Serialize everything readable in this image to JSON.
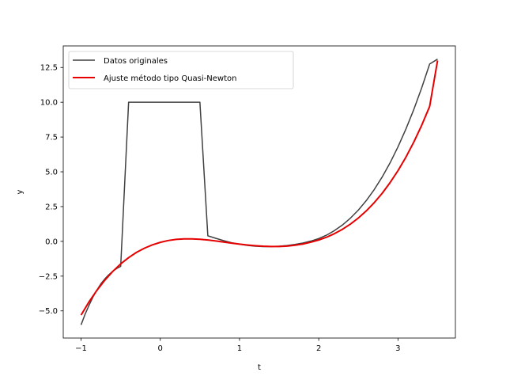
{
  "chart_data": {
    "type": "line",
    "xlabel": "t",
    "ylabel": "y",
    "xlim": [
      -1.225,
      3.725
    ],
    "ylim": [
      -6.95,
      14.05
    ],
    "xticks": [
      -1,
      0,
      1,
      2,
      3
    ],
    "yticks": [
      -5.0,
      -2.5,
      0.0,
      2.5,
      5.0,
      7.5,
      10.0,
      12.5
    ],
    "xtick_labels": [
      "−1",
      "0",
      "1",
      "2",
      "3"
    ],
    "ytick_labels": [
      "−5.0",
      "−2.5",
      "0.0",
      "2.5",
      "5.0",
      "7.5",
      "10.0",
      "12.5"
    ],
    "legend_position": "upper-left",
    "grid": false,
    "series": [
      {
        "name": "Datos originales",
        "color": "#404040",
        "x": [
          -1.0,
          -0.95,
          -0.9,
          -0.85,
          -0.8,
          -0.75,
          -0.7,
          -0.65,
          -0.6,
          -0.55,
          -0.5,
          -0.4,
          -0.3,
          -0.2,
          -0.1,
          0.0,
          0.1,
          0.2,
          0.3,
          0.4,
          0.5,
          0.6,
          0.7,
          0.8,
          0.9,
          1.0,
          1.1,
          1.2,
          1.3,
          1.4,
          1.5,
          1.6,
          1.7,
          1.8,
          1.9,
          2.0,
          2.1,
          2.2,
          2.3,
          2.4,
          2.5,
          2.6,
          2.7,
          2.8,
          2.9,
          3.0,
          3.1,
          3.2,
          3.3,
          3.4,
          3.5
        ],
        "y": [
          -6.0,
          -5.25,
          -4.6,
          -4.0,
          -3.5,
          -3.05,
          -2.7,
          -2.4,
          -2.15,
          -1.95,
          -1.8,
          10.0,
          10.0,
          10.0,
          10.0,
          10.0,
          10.0,
          10.0,
          10.0,
          10.0,
          10.0,
          0.4,
          0.22,
          0.05,
          -0.1,
          -0.2,
          -0.29,
          -0.35,
          -0.38,
          -0.38,
          -0.35,
          -0.3,
          -0.22,
          -0.12,
          0.02,
          0.2,
          0.45,
          0.78,
          1.18,
          1.67,
          2.25,
          2.93,
          3.72,
          4.62,
          5.64,
          6.79,
          8.07,
          9.48,
          11.04,
          12.75,
          13.1
        ]
      },
      {
        "name": "Ajuste método tipo Quasi-Newton",
        "color": "#e60000",
        "x": [
          -1.0,
          -0.9,
          -0.8,
          -0.7,
          -0.6,
          -0.5,
          -0.4,
          -0.3,
          -0.2,
          -0.1,
          0.0,
          0.1,
          0.2,
          0.3,
          0.4,
          0.5,
          0.6,
          0.7,
          0.8,
          0.9,
          1.0,
          1.1,
          1.2,
          1.3,
          1.4,
          1.5,
          1.6,
          1.7,
          1.8,
          1.9,
          2.0,
          2.1,
          2.2,
          2.3,
          2.4,
          2.5,
          2.6,
          2.7,
          2.8,
          2.9,
          3.0,
          3.1,
          3.2,
          3.3,
          3.4,
          3.5
        ],
        "y": [
          -5.3,
          -4.35,
          -3.52,
          -2.79,
          -2.16,
          -1.62,
          -1.17,
          -0.79,
          -0.49,
          -0.25,
          -0.07,
          0.06,
          0.14,
          0.18,
          0.18,
          0.15,
          0.1,
          0.03,
          -0.05,
          -0.13,
          -0.2,
          -0.26,
          -0.31,
          -0.35,
          -0.37,
          -0.37,
          -0.34,
          -0.28,
          -0.19,
          -0.06,
          0.1,
          0.3,
          0.56,
          0.87,
          1.24,
          1.68,
          2.19,
          2.78,
          3.45,
          4.22,
          5.08,
          6.05,
          7.14,
          8.35,
          9.7,
          13.0
        ]
      }
    ]
  }
}
